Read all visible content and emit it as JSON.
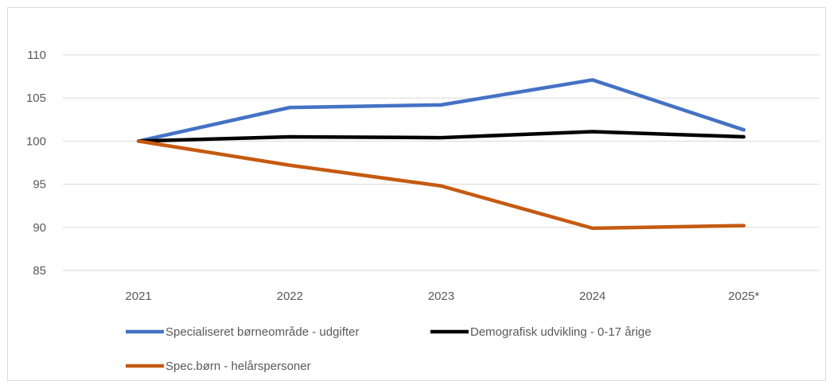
{
  "chart_data": {
    "type": "line",
    "title": "",
    "xlabel": "",
    "ylabel": "",
    "categories": [
      "2021",
      "2022",
      "2023",
      "2024",
      "2025*"
    ],
    "ylim": [
      85,
      110
    ],
    "yticks": [
      85,
      90,
      95,
      100,
      105,
      110
    ],
    "grid": true,
    "legend": "bottom",
    "series": [
      {
        "name": "Specialiseret børneområde - udgifter",
        "color": "#4472c4",
        "values": [
          100,
          103.9,
          104.2,
          107.1,
          101.3
        ]
      },
      {
        "name": "Demografisk udvikling - 0-17 årige",
        "color": "#000000",
        "values": [
          100,
          100.5,
          100.4,
          101.1,
          100.5
        ]
      },
      {
        "name": "Spec.børn - helårspersoner",
        "color": "#c55a11",
        "values": [
          100,
          97.2,
          94.8,
          89.9,
          90.2
        ]
      }
    ]
  }
}
